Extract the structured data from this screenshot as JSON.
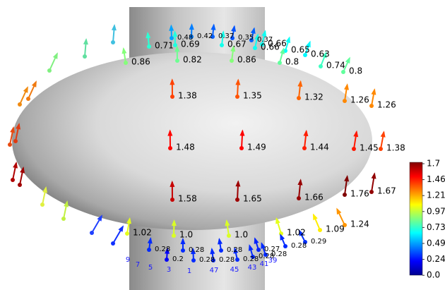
{
  "labels": [
    "0.48",
    "0.42",
    "0.37",
    "0.35",
    "0.37",
    "0.66",
    "0.71",
    "0.69",
    "0.67",
    "0.66",
    "0.65",
    "0.63",
    "0.86",
    "0.82",
    "0.86",
    "0.8",
    "0.74",
    "0.8",
    "1.38",
    "1.35",
    "1.32",
    "1.26",
    "1.26",
    "1.48",
    "1.49",
    "1.44",
    "1.45",
    "1.38",
    "1.58",
    "1.65",
    "1.66",
    "1.76",
    "1.67",
    "1.02",
    "1.0",
    "1.0",
    "1.02",
    "1.09",
    "1.24",
    "0.28",
    "0.2",
    "0.28",
    "0.28",
    "0.28",
    "0.28",
    "0.28",
    "0.27",
    "0.28",
    "0.28",
    "0.28",
    "0.29"
  ],
  "node_ids": [
    "9",
    "7",
    "5",
    "3",
    "1",
    "47",
    "45",
    "43",
    "41",
    "39"
  ],
  "colorbar": {
    "ticks": [
      "1.7",
      "1.46",
      "1.21",
      "0.97",
      "0.73",
      "0.49",
      "0.24",
      "0.0"
    ]
  }
}
